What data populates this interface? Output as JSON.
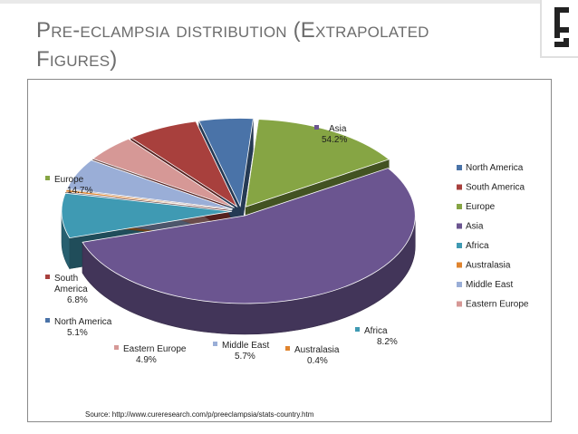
{
  "slide": {
    "title_line1": "Pre-eclampsia distribution (Extrapolated",
    "title_line2": "Figures)",
    "source": "Source: http://www.cureresearch.com/p/preeclampsia/stats-country.htm"
  },
  "chart_data": {
    "type": "pie",
    "style": "3d-exploded",
    "legend_position": "right",
    "categories": [
      "North America",
      "Europe",
      "Asia",
      "Africa",
      "Australasia",
      "Middle East",
      "Eastern Europe",
      "South America"
    ],
    "legend_entries": [
      "North America",
      "South America",
      "Europe",
      "Asia",
      "Africa",
      "Australasia",
      "Middle East",
      "Eastern Europe"
    ],
    "values": [
      5.1,
      14.7,
      54.2,
      8.2,
      0.4,
      5.7,
      4.9,
      6.8
    ],
    "data_labels": [
      "5.1%",
      "14.7%",
      "54.2%",
      "8.2%",
      "0.4%",
      "5.7%",
      "4.9%",
      "6.8%"
    ],
    "colors": {
      "North America": "#4a73a8",
      "South America": "#a8403d",
      "Europe": "#86a544",
      "Asia": "#6b5590",
      "Africa": "#3f9ab3",
      "Australasia": "#e0842e",
      "Middle East": "#9aaed7",
      "Eastern Europe": "#d69896"
    }
  }
}
